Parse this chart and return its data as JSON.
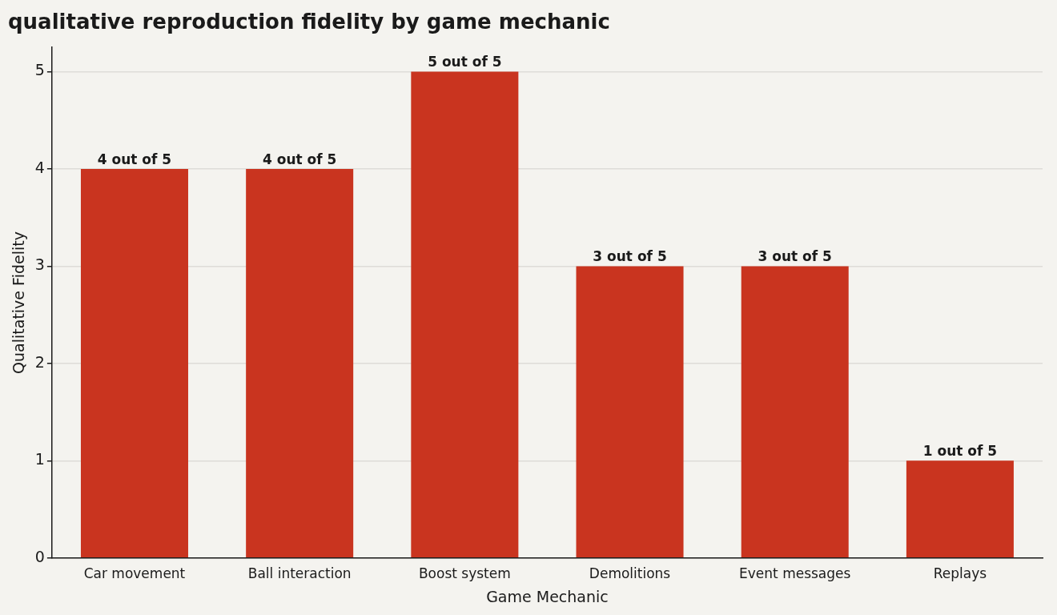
{
  "chart_data": {
    "type": "bar",
    "title": "qualitative reproduction fidelity by game mechanic",
    "xlabel": "Game Mechanic",
    "ylabel": "Qualitative Fidelity",
    "categories": [
      "Car movement",
      "Ball interaction",
      "Boost system",
      "Demolitions",
      "Event messages",
      "Replays"
    ],
    "values": [
      4,
      4,
      5,
      3,
      3,
      1
    ],
    "value_labels": [
      "4 out of 5",
      "4 out of 5",
      "5 out of 5",
      "3 out of 5",
      "3 out of 5",
      "1 out of 5"
    ],
    "color": "#c9341f",
    "ylim": [
      0,
      5.25
    ],
    "yticks": [
      0,
      1,
      2,
      3,
      4,
      5
    ],
    "grid": "y",
    "legend": false
  }
}
